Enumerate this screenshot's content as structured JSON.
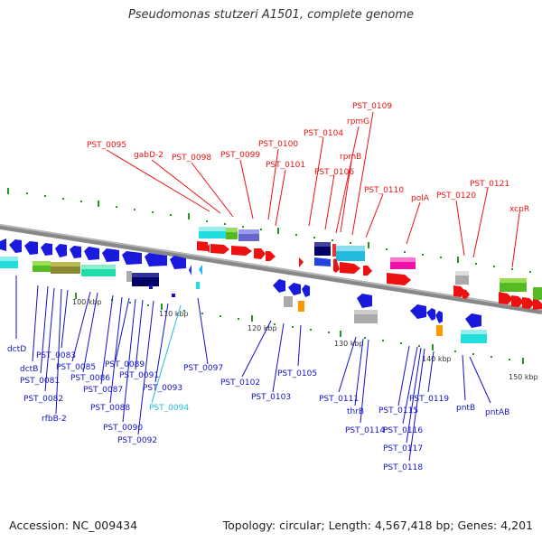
{
  "title": "Pseudomonas stutzeri A1501, complete genome",
  "footer": {
    "accession": "Accession: NC_009434",
    "topology": "Topology: circular; Length: 4,567,418 bp; Genes: 4,201"
  },
  "colors": {
    "forward": "#ee1111",
    "reverse": "#1111cc",
    "highlight": "#22bbdd",
    "backbone": "#888888",
    "ticks": "#229922"
  },
  "scale_labels": [
    "100 kbp",
    "110 kbp",
    "120 kbp",
    "130 kbp",
    "140 kbp",
    "150 kbp"
  ],
  "top_labels": [
    "PST_0095",
    "gabD-2",
    "PST_0098",
    "PST_0099",
    "PST_0100",
    "PST_0101",
    "PST_0104",
    "PST_0106",
    "rpmG",
    "rpmB",
    "PST_0109",
    "PST_0110",
    "polA",
    "PST_0120",
    "PST_0121",
    "xcpR"
  ],
  "bottom_labels": [
    "dctD",
    "dctB",
    "PST_0081",
    "PST_0082",
    "rfbB-2",
    "PST_0083",
    "PST_0085",
    "PST_0086",
    "PST_0087",
    "PST_0088",
    "PST_0089",
    "PST_0090",
    "PST_0091",
    "PST_0092",
    "PST_0093",
    "PST_0094",
    "PST_0097",
    "PST_0102",
    "PST_0103",
    "PST_0105",
    "PST_0111",
    "thrB",
    "PST_0114",
    "PST_0115",
    "PST_0116",
    "PST_0117",
    "PST_0118",
    "PST_0119",
    "pntB",
    "pntAB"
  ]
}
